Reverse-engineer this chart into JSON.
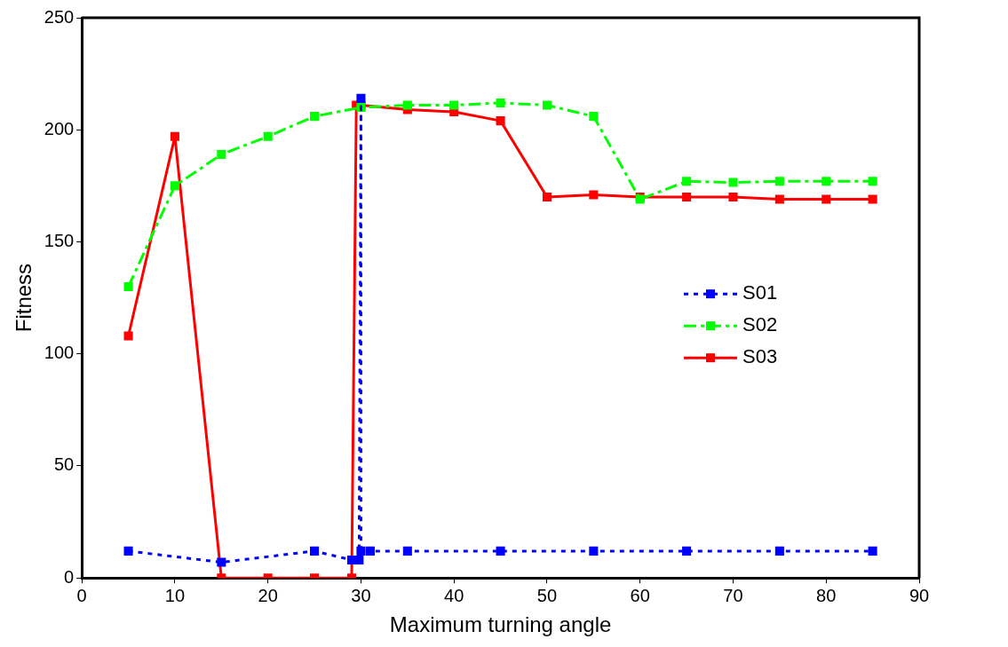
{
  "chart_data": {
    "type": "line",
    "xlabel": "Maximum turning angle",
    "ylabel": "Fitness",
    "xlim": [
      0,
      90
    ],
    "xticks": [
      0,
      10,
      20,
      30,
      40,
      50,
      60,
      70,
      80,
      90
    ],
    "ylim": [
      0,
      250
    ],
    "yticks": [
      0,
      50,
      100,
      150,
      200,
      250
    ],
    "grid": false,
    "legend": "right",
    "marker": "square",
    "series": [
      {
        "name": "S01",
        "color": "#0000ff",
        "line_style": "dotted",
        "x": [
          5,
          15,
          25,
          29,
          29.8,
          30,
          30,
          31,
          35,
          45,
          55,
          65,
          75,
          85
        ],
        "values": [
          12,
          7,
          12,
          8,
          8,
          214,
          12,
          12,
          12,
          12,
          12,
          12,
          12,
          12
        ]
      },
      {
        "name": "S02",
        "color": "#00ff00",
        "line_style": "dashed",
        "x": [
          5,
          10,
          15,
          20,
          25,
          30,
          35,
          40,
          45,
          50,
          55,
          60,
          65,
          70,
          75,
          80,
          85
        ],
        "values": [
          130,
          175,
          189,
          197,
          206,
          210,
          211,
          211,
          212,
          211,
          206,
          169,
          177,
          176.5,
          177,
          177,
          177
        ]
      },
      {
        "name": "S03",
        "color": "#ff0000",
        "line_style": "solid",
        "x": [
          5,
          10,
          15,
          20,
          25,
          29,
          29.5,
          30,
          35,
          40,
          45,
          50,
          55,
          60,
          65,
          70,
          75,
          80,
          85
        ],
        "values": [
          108,
          197,
          0,
          0,
          0,
          0,
          211,
          211,
          209,
          208,
          204,
          170,
          171,
          170,
          170,
          170,
          169,
          169,
          169
        ]
      }
    ]
  }
}
